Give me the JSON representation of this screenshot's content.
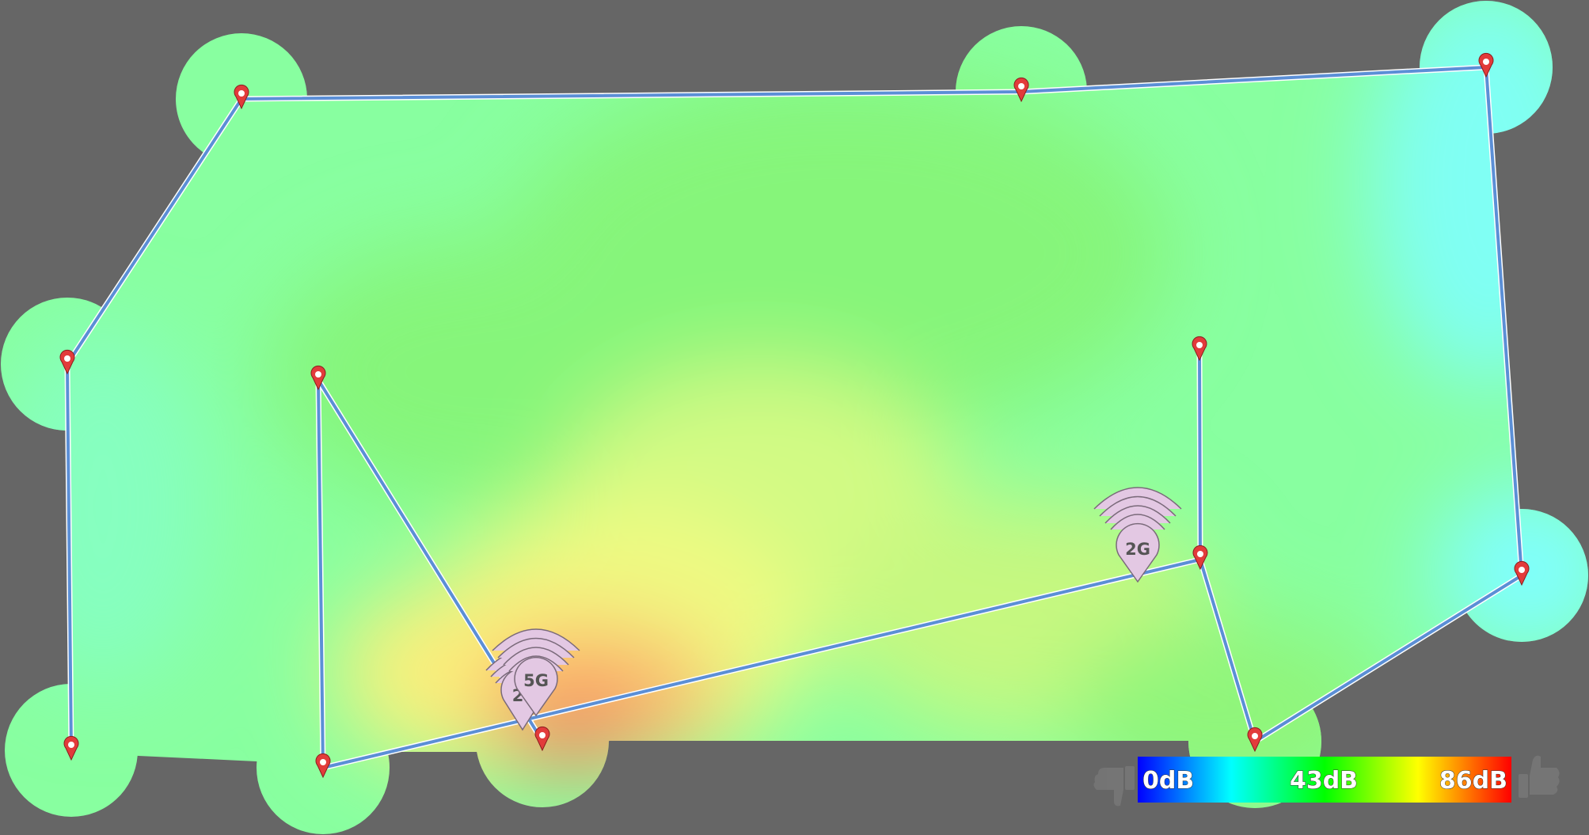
{
  "heatmap": {
    "name": "wifi-signal-heatmap",
    "colors": {
      "background": "#666666",
      "wall": "#5b8fd6",
      "wall_outline": "#ffffff",
      "marker": "#e23b3b",
      "access_point": "#e3c8e3",
      "access_point_outline": "#7a6a7a"
    }
  },
  "access_points": [
    {
      "band_label": "2",
      "icon": "wifi-access-point-icon"
    },
    {
      "band_label": "5G",
      "icon": "wifi-access-point-icon"
    },
    {
      "band_label": "2G",
      "icon": "wifi-access-point-icon"
    }
  ],
  "legend": {
    "min_label": "0dB",
    "mid_label": "43dB",
    "max_label": "86dB",
    "left_icon": "thumbs-down-icon",
    "right_icon": "thumbs-up-icon",
    "gradient_colors": [
      "#0000ff",
      "#00ffff",
      "#00ff00",
      "#ffff00",
      "#ff0000"
    ]
  }
}
